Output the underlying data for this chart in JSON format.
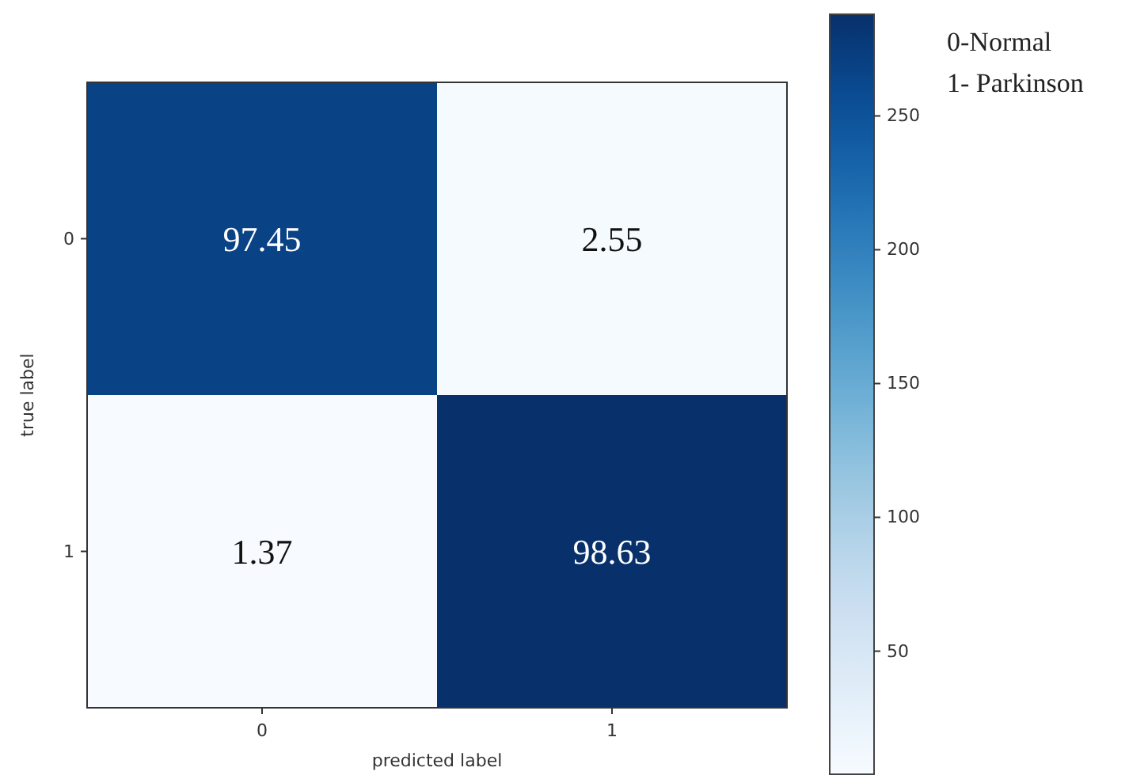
{
  "chart_data": {
    "type": "heatmap",
    "xlabel": "predicted label",
    "ylabel": "true label",
    "categories": [
      "0",
      "1"
    ],
    "y_categories": [
      "0",
      "1"
    ],
    "cells": [
      [
        268,
        7
      ],
      [
        4,
        288
      ]
    ],
    "clim": [
      4,
      288
    ],
    "cticks": [
      50,
      100,
      150,
      200,
      250
    ],
    "annotations": [
      "0-Normal",
      "1- Parkinson",
      "97.45",
      "2.55",
      "1.37",
      "98.63"
    ]
  }
}
